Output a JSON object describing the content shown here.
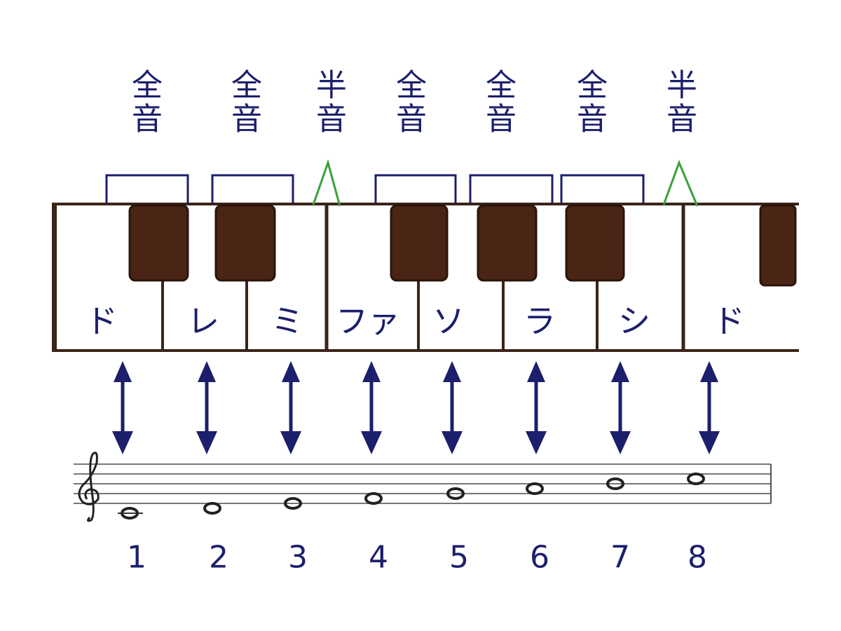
{
  "intervals": [
    "全音",
    "全音",
    "半音",
    "全音",
    "全音",
    "全音",
    "半音"
  ],
  "keys": [
    "ド",
    "レ",
    "ミ",
    "ファ",
    "ソ",
    "ラ",
    "シ",
    "ド"
  ],
  "numbers": [
    1,
    2,
    3,
    4,
    5,
    6,
    7,
    8
  ]
}
